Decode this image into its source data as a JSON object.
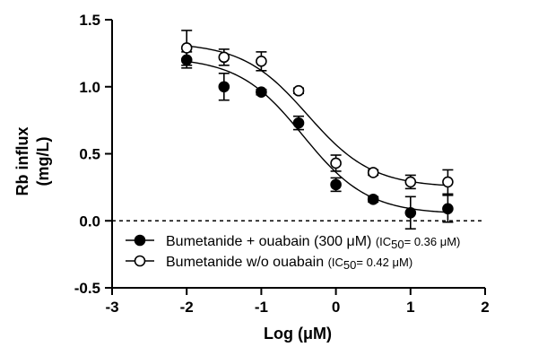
{
  "chart_data": {
    "type": "scatter",
    "xlabel": "Log (μM)",
    "ylabel_lines": [
      "Rb influx",
      "(mg/L)"
    ],
    "xlim": [
      -3,
      2
    ],
    "ylim": [
      -0.5,
      1.5
    ],
    "xticks": [
      -3,
      -2,
      -1,
      0,
      1,
      2
    ],
    "yticks": [
      -0.5,
      0.0,
      0.5,
      1.0,
      1.5
    ],
    "xtick_labels": [
      "-3",
      "-2",
      "-1",
      "0",
      "1",
      "2"
    ],
    "ytick_labels": [
      "-0.5",
      "0.0",
      "0.5",
      "1.0",
      "1.5"
    ],
    "reference_line_y": 0,
    "legend_position": "lower-left inside plot",
    "series": [
      {
        "name": "Bumetanide + ouabain (300 μM)",
        "ic50_prefix": "(IC",
        "ic50_sub": "50",
        "ic50_suffix": "= 0.36 μM)",
        "marker": "filled-circle",
        "color": "#000000",
        "fit": {
          "bottom": 0.05,
          "top": 1.22,
          "logIC50": -0.44,
          "hill": 1.0
        },
        "points": [
          {
            "x": -2.0,
            "y": 1.2,
            "err": 0.06
          },
          {
            "x": -1.5,
            "y": 1.0,
            "err": 0.1
          },
          {
            "x": -1.0,
            "y": 0.96,
            "err": 0.02
          },
          {
            "x": -0.5,
            "y": 0.73,
            "err": 0.05
          },
          {
            "x": 0.0,
            "y": 0.27,
            "err": 0.05
          },
          {
            "x": 0.5,
            "y": 0.16,
            "err": 0.02
          },
          {
            "x": 1.0,
            "y": 0.06,
            "err": 0.12
          },
          {
            "x": 1.5,
            "y": 0.09,
            "err": 0.1
          }
        ]
      },
      {
        "name": "Bumetanide w/o ouabain",
        "ic50_prefix": "(IC",
        "ic50_sub": "50",
        "ic50_suffix": "= 0.42 μM)",
        "marker": "open-circle",
        "color": "#000000",
        "fit": {
          "bottom": 0.25,
          "top": 1.33,
          "logIC50": -0.38,
          "hill": 1.0
        },
        "points": [
          {
            "x": -2.0,
            "y": 1.29,
            "err": 0.13
          },
          {
            "x": -1.5,
            "y": 1.22,
            "err": 0.06
          },
          {
            "x": -1.0,
            "y": 1.19,
            "err": 0.07
          },
          {
            "x": -0.5,
            "y": 0.97,
            "err": 0.02
          },
          {
            "x": 0.0,
            "y": 0.43,
            "err": 0.06
          },
          {
            "x": 0.5,
            "y": 0.36,
            "err": 0.02
          },
          {
            "x": 1.0,
            "y": 0.29,
            "err": 0.05
          },
          {
            "x": 1.5,
            "y": 0.29,
            "err": 0.09
          }
        ]
      }
    ]
  }
}
